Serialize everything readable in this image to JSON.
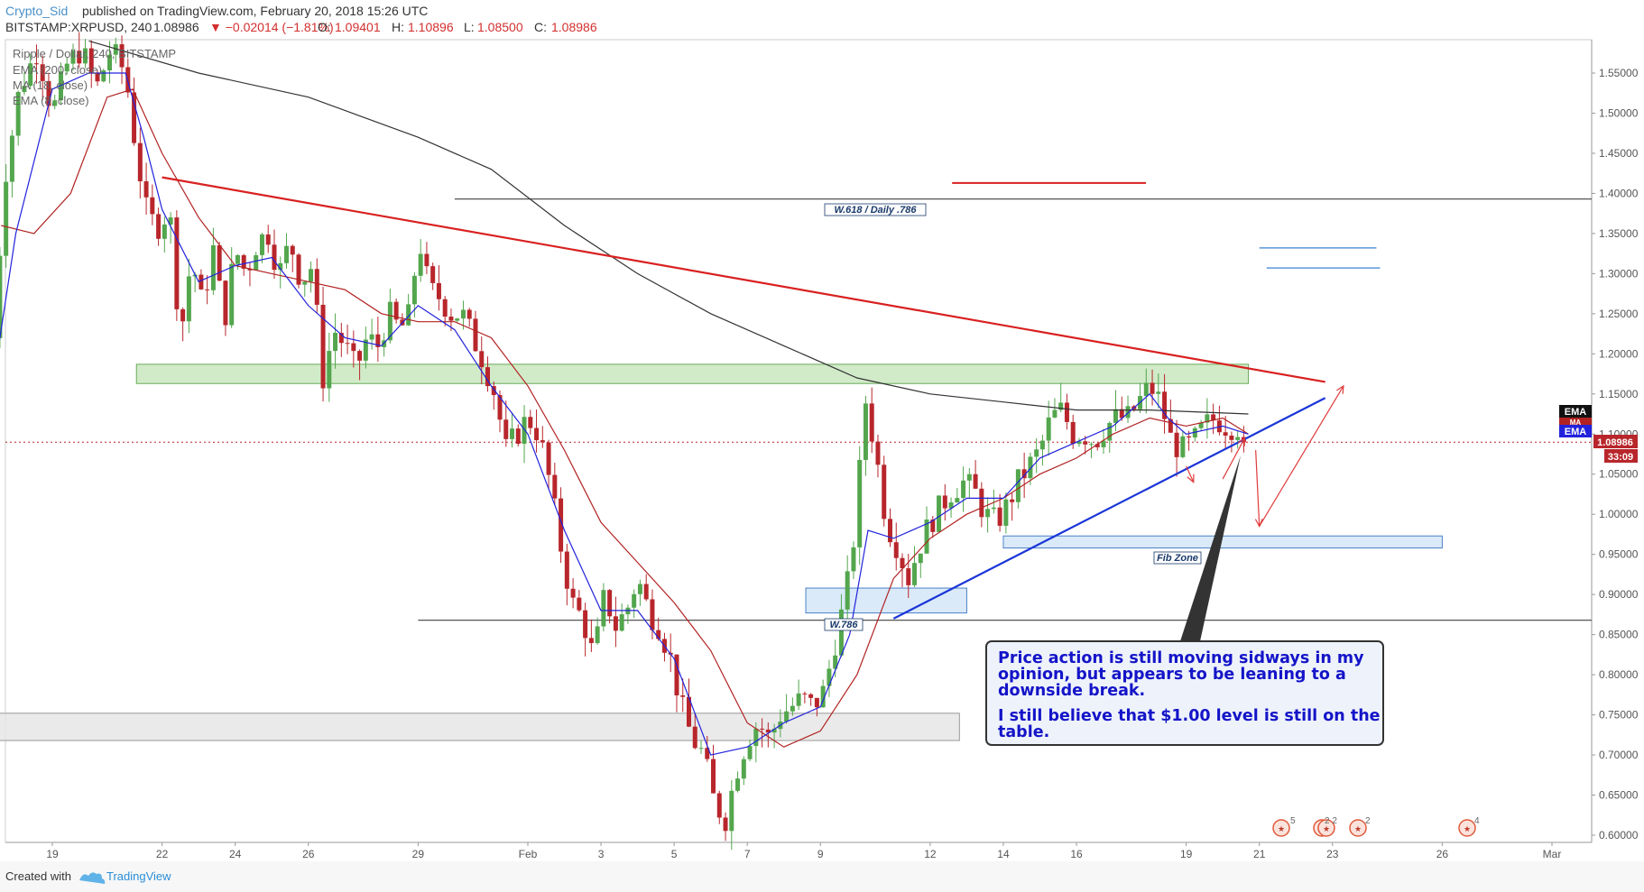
{
  "header": {
    "author": "Crypto_Sid",
    "published_text": "published on TradingView.com, February 20, 2018 15:26 UTC",
    "symbol": "BITSTAMP:XRPUSD, 240",
    "last_price": "1.08986",
    "change": "▼ −0.02014 (−1.81%)",
    "open_label": "O:",
    "open": "1.09401",
    "high_label": "H:",
    "high": "1.10896",
    "low_label": "L:",
    "low": "1.08500",
    "close_label": "C:",
    "close": "1.08986"
  },
  "legend": {
    "title": "Ripple / Dollar, 240, BITSTAMP",
    "items": [
      "EMA (200, close)",
      "MA (18, close)",
      "EMA (8, close)"
    ]
  },
  "price_scale": {
    "current_price_tag": "1.08986",
    "countdown_tag": "33:09",
    "ema_tag_top": "EMA",
    "ma_tag": "MA",
    "ema_tag_bottom": "EMA"
  },
  "annotations": {
    "fib_level_top": "W.618 / Daily .786",
    "fib_level_bottom": "W.786",
    "fib_zone": "Fib Zone",
    "note_line_1": "Price action is still moving sidways in my",
    "note_line_2": "opinion, but appears to be leaning to a",
    "note_line_3": "downside break.",
    "note_line_4": "I still believe that $1.00 level is still on the",
    "note_line_5": "table."
  },
  "events": {
    "badge_1": "5",
    "badge_2": "2 2",
    "badge_3": "2",
    "badge_4": "4"
  },
  "footer": {
    "created_with": "Created with",
    "brand": "TradingView"
  },
  "colors": {
    "up_candle": "#53a64d",
    "down_candle": "#b8262b",
    "ema200": "#333333",
    "ma18": "#b22222",
    "ema8": "#2222dd",
    "resistance_line": "#d92020",
    "support_line": "#1a35d8",
    "green_zone": "#c9e8c0",
    "blue_zone": "#d4e6f8",
    "gray_zone": "#e6e6e6"
  },
  "chart_data": {
    "type": "candlestick",
    "timeframe": "240",
    "ylim": [
      0.59,
      1.59
    ],
    "y_ticks": [
      "1.55000",
      "1.50000",
      "1.45000",
      "1.40000",
      "1.35000",
      "1.30000",
      "1.25000",
      "1.20000",
      "1.15000",
      "1.10000",
      "1.05000",
      "1.00000",
      "0.95000",
      "0.90000",
      "0.85000",
      "0.80000",
      "0.75000",
      "0.70000",
      "0.65000",
      "0.60000"
    ],
    "x_ticks": [
      {
        "label": "19",
        "day": 19
      },
      {
        "label": "22",
        "day": 22
      },
      {
        "label": "24",
        "day": 24
      },
      {
        "label": "26",
        "day": 26
      },
      {
        "label": "29",
        "day": 29
      },
      {
        "label": "Feb",
        "day": 32
      },
      {
        "label": "3",
        "day": 34
      },
      {
        "label": "5",
        "day": 36
      },
      {
        "label": "7",
        "day": 38
      },
      {
        "label": "9",
        "day": 40
      },
      {
        "label": "12",
        "day": 43
      },
      {
        "label": "14",
        "day": 45
      },
      {
        "label": "16",
        "day": 47
      },
      {
        "label": "19",
        "day": 50
      },
      {
        "label": "21",
        "day": 52
      },
      {
        "label": "23",
        "day": 54
      },
      {
        "label": "26",
        "day": 57
      },
      {
        "label": "Mar",
        "day": 60
      }
    ],
    "x_unit": "day (January 2018 calendar; Feb 1 = 32)",
    "price_path": [
      [
        17.4,
        1.22
      ],
      [
        17.7,
        1.42
      ],
      [
        18.1,
        1.53
      ],
      [
        18.6,
        1.58
      ],
      [
        19.0,
        1.5
      ],
      [
        19.4,
        1.56
      ],
      [
        19.8,
        1.58
      ],
      [
        20.2,
        1.53
      ],
      [
        20.6,
        1.58
      ],
      [
        21.0,
        1.55
      ],
      [
        21.3,
        1.45
      ],
      [
        21.6,
        1.37
      ],
      [
        21.9,
        1.36
      ],
      [
        22.2,
        1.38
      ],
      [
        22.5,
        1.22
      ],
      [
        22.8,
        1.32
      ],
      [
        23.1,
        1.26
      ],
      [
        23.4,
        1.33
      ],
      [
        23.7,
        1.24
      ],
      [
        24.0,
        1.33
      ],
      [
        24.3,
        1.3
      ],
      [
        24.6,
        1.34
      ],
      [
        24.9,
        1.35
      ],
      [
        25.2,
        1.3
      ],
      [
        25.5,
        1.34
      ],
      [
        25.8,
        1.29
      ],
      [
        26.1,
        1.31
      ],
      [
        26.4,
        1.17
      ],
      [
        26.7,
        1.23
      ],
      [
        27.0,
        1.21
      ],
      [
        27.3,
        1.18
      ],
      [
        27.6,
        1.22
      ],
      [
        27.9,
        1.21
      ],
      [
        28.2,
        1.25
      ],
      [
        28.5,
        1.23
      ],
      [
        28.8,
        1.25
      ],
      [
        29.0,
        1.35
      ],
      [
        29.3,
        1.28
      ],
      [
        29.6,
        1.27
      ],
      [
        29.9,
        1.25
      ],
      [
        30.2,
        1.25
      ],
      [
        30.5,
        1.22
      ],
      [
        30.8,
        1.19
      ],
      [
        31.1,
        1.15
      ],
      [
        31.4,
        1.08
      ],
      [
        31.7,
        1.1
      ],
      [
        32.0,
        1.12
      ],
      [
        32.3,
        1.1
      ],
      [
        32.6,
        1.04
      ],
      [
        32.9,
        0.96
      ],
      [
        33.2,
        0.89
      ],
      [
        33.5,
        0.87
      ],
      [
        33.8,
        0.82
      ],
      [
        34.1,
        0.9
      ],
      [
        34.4,
        0.86
      ],
      [
        34.7,
        0.88
      ],
      [
        35.0,
        0.92
      ],
      [
        35.3,
        0.88
      ],
      [
        35.6,
        0.86
      ],
      [
        35.9,
        0.82
      ],
      [
        36.2,
        0.76
      ],
      [
        36.5,
        0.72
      ],
      [
        36.8,
        0.7
      ],
      [
        37.1,
        0.64
      ],
      [
        37.4,
        0.62
      ],
      [
        37.7,
        0.68
      ],
      [
        38.0,
        0.72
      ],
      [
        38.3,
        0.74
      ],
      [
        38.6,
        0.72
      ],
      [
        38.9,
        0.75
      ],
      [
        39.2,
        0.76
      ],
      [
        39.5,
        0.77
      ],
      [
        39.8,
        0.76
      ],
      [
        40.1,
        0.78
      ],
      [
        40.4,
        0.84
      ],
      [
        40.7,
        0.9
      ],
      [
        41.0,
        1.0
      ],
      [
        41.2,
        1.15
      ],
      [
        41.5,
        1.08
      ],
      [
        41.8,
        0.99
      ],
      [
        42.1,
        0.96
      ],
      [
        42.4,
        0.92
      ],
      [
        42.7,
        0.96
      ],
      [
        43.0,
        0.99
      ],
      [
        43.3,
        1.01
      ],
      [
        43.6,
        1.03
      ],
      [
        43.9,
        1.04
      ],
      [
        44.2,
        1.03
      ],
      [
        44.5,
        1.0
      ],
      [
        44.8,
        0.99
      ],
      [
        45.1,
        1.01
      ],
      [
        45.4,
        1.04
      ],
      [
        45.7,
        1.06
      ],
      [
        46.0,
        1.08
      ],
      [
        46.3,
        1.12
      ],
      [
        46.6,
        1.13
      ],
      [
        46.9,
        1.1
      ],
      [
        47.2,
        1.1
      ],
      [
        47.5,
        1.09
      ],
      [
        47.8,
        1.11
      ],
      [
        48.1,
        1.12
      ],
      [
        48.4,
        1.12
      ],
      [
        48.7,
        1.14
      ],
      [
        49.0,
        1.16
      ],
      [
        49.3,
        1.14
      ],
      [
        49.6,
        1.09
      ],
      [
        49.9,
        1.08
      ],
      [
        50.2,
        1.09
      ],
      [
        50.5,
        1.11
      ],
      [
        50.8,
        1.12
      ],
      [
        51.1,
        1.11
      ],
      [
        51.4,
        1.11
      ],
      [
        51.7,
        1.09
      ]
    ],
    "price_high": 1.10896,
    "price_low": 1.085,
    "last_close": 1.08986,
    "series": [
      {
        "name": "EMA (200, close)",
        "points": [
          [
            20.0,
            1.59
          ],
          [
            23,
            1.55
          ],
          [
            26,
            1.52
          ],
          [
            29,
            1.47
          ],
          [
            31,
            1.43
          ],
          [
            33,
            1.36
          ],
          [
            35,
            1.3
          ],
          [
            37,
            1.25
          ],
          [
            39,
            1.21
          ],
          [
            41,
            1.17
          ],
          [
            43,
            1.15
          ],
          [
            45,
            1.14
          ],
          [
            47,
            1.13
          ],
          [
            49,
            1.13
          ],
          [
            51.7,
            1.125
          ]
        ]
      },
      {
        "name": "MA (18, close)",
        "points": [
          [
            17.6,
            1.36
          ],
          [
            18.5,
            1.35
          ],
          [
            19.5,
            1.4
          ],
          [
            20.5,
            1.52
          ],
          [
            21.2,
            1.53
          ],
          [
            22,
            1.45
          ],
          [
            23,
            1.37
          ],
          [
            24,
            1.31
          ],
          [
            25,
            1.3
          ],
          [
            26,
            1.29
          ],
          [
            27,
            1.28
          ],
          [
            28,
            1.25
          ],
          [
            29,
            1.24
          ],
          [
            30,
            1.24
          ],
          [
            31,
            1.22
          ],
          [
            32,
            1.16
          ],
          [
            33,
            1.08
          ],
          [
            34,
            0.99
          ],
          [
            35,
            0.94
          ],
          [
            36,
            0.89
          ],
          [
            37,
            0.83
          ],
          [
            38,
            0.74
          ],
          [
            39,
            0.71
          ],
          [
            40,
            0.73
          ],
          [
            41,
            0.8
          ],
          [
            42,
            0.92
          ],
          [
            43,
            0.97
          ],
          [
            44,
            1.0
          ],
          [
            45,
            1.02
          ],
          [
            46,
            1.05
          ],
          [
            47,
            1.07
          ],
          [
            48,
            1.1
          ],
          [
            49,
            1.12
          ],
          [
            50,
            1.11
          ],
          [
            51,
            1.12
          ],
          [
            51.7,
            1.1
          ]
        ]
      },
      {
        "name": "EMA (8, close)",
        "points": [
          [
            17.4,
            1.17
          ],
          [
            18,
            1.35
          ],
          [
            19,
            1.53
          ],
          [
            20,
            1.55
          ],
          [
            21,
            1.55
          ],
          [
            21.5,
            1.47
          ],
          [
            22,
            1.38
          ],
          [
            23,
            1.29
          ],
          [
            24,
            1.31
          ],
          [
            25,
            1.32
          ],
          [
            26,
            1.26
          ],
          [
            27,
            1.22
          ],
          [
            28,
            1.21
          ],
          [
            29,
            1.26
          ],
          [
            30,
            1.23
          ],
          [
            31,
            1.16
          ],
          [
            32,
            1.1
          ],
          [
            33,
            0.98
          ],
          [
            34,
            0.88
          ],
          [
            35,
            0.88
          ],
          [
            36,
            0.82
          ],
          [
            37,
            0.7
          ],
          [
            38,
            0.71
          ],
          [
            39,
            0.74
          ],
          [
            40,
            0.76
          ],
          [
            40.8,
            0.85
          ],
          [
            41.3,
            0.98
          ],
          [
            42,
            0.97
          ],
          [
            43,
            0.99
          ],
          [
            44,
            1.02
          ],
          [
            45,
            1.02
          ],
          [
            46,
            1.07
          ],
          [
            47,
            1.09
          ],
          [
            48,
            1.11
          ],
          [
            49,
            1.15
          ],
          [
            49.5,
            1.12
          ],
          [
            50,
            1.1
          ],
          [
            51,
            1.11
          ],
          [
            51.7,
            1.1
          ]
        ]
      }
    ],
    "drawings": {
      "resistance_trendline": {
        "from": [
          22.0,
          1.42
        ],
        "to": [
          53.8,
          1.165
        ]
      },
      "support_trendline": {
        "from": [
          42.0,
          0.87
        ],
        "to": [
          53.8,
          1.145
        ]
      },
      "short_red_hline": {
        "from": [
          43.6,
          1.413
        ],
        "to": [
          48.9,
          1.413
        ]
      },
      "blue_hlines": [
        {
          "from": [
            52.0,
            1.332
          ],
          "to": [
            55.2,
            1.332
          ]
        },
        {
          "from": [
            52.2,
            1.307
          ],
          "to": [
            55.3,
            1.307
          ]
        }
      ],
      "horizontal_line_top": {
        "price": 1.393,
        "from_day": 30.0
      },
      "horizontal_line_bottom": {
        "price": 0.868,
        "from_day": 29.0
      },
      "green_zone": {
        "from_day": 21.3,
        "to_day": 51.7,
        "price_top": 1.187,
        "price_bottom": 1.163
      },
      "blue_zone_left": {
        "from_day": 39.6,
        "to_day": 44.0,
        "price_top": 0.908,
        "price_bottom": 0.877
      },
      "blue_zone_fib": {
        "from_day": 45.0,
        "to_day": 57.0,
        "price_top": 0.973,
        "price_bottom": 0.958
      },
      "gray_zone": {
        "from_day": 17.4,
        "to_day": 43.8,
        "price_top": 0.752,
        "price_bottom": 0.718
      },
      "red_arrows": [
        {
          "from": [
            51.0,
            1.044
          ],
          "to": [
            51.6,
            1.095
          ],
          "tip": [
            51.9,
            1.08
          ]
        },
        {
          "from": [
            51.9,
            1.08
          ],
          "to": [
            52.0,
            0.985
          ]
        },
        {
          "from": [
            52.0,
            0.985
          ],
          "to": [
            54.3,
            1.16
          ]
        },
        {
          "from": [
            50.0,
            1.06
          ],
          "to": [
            50.2,
            1.04
          ]
        }
      ]
    }
  }
}
